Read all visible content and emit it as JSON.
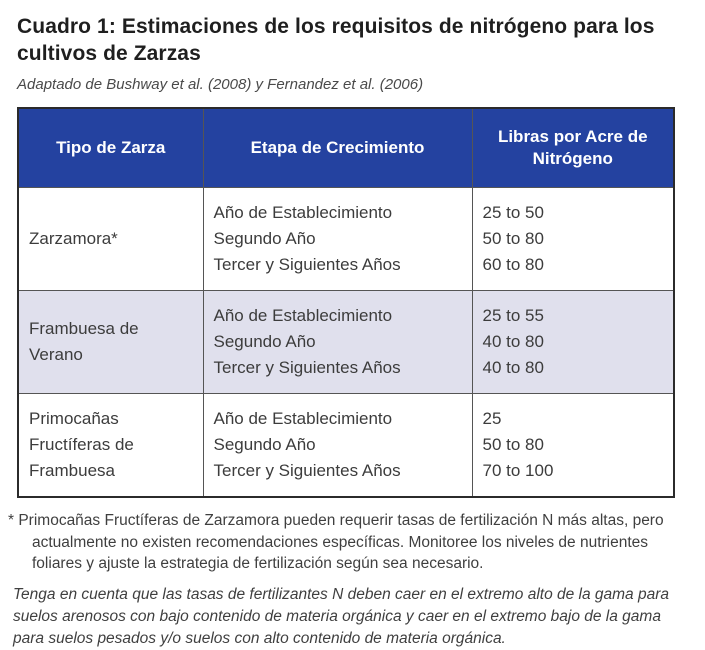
{
  "page": {
    "title": "Cuadro 1: Estimaciones de los requisitos de nitrógeno para los cultivos de Zarzas",
    "source": "Adaptado de Bushway et al. (2008) y Fernandez et al. (2006)"
  },
  "table": {
    "columns": [
      "Tipo de Zarza",
      "Etapa de Crecimiento",
      "Libras por Acre de Nitrógeno"
    ],
    "rows": [
      {
        "type": "Zarzamora*",
        "stages": [
          "Año de Establecimiento",
          "Segundo Año",
          "Tercer y Siguientes Años"
        ],
        "rates": [
          "25 to 50",
          "50 to 80",
          "60 to 80"
        ]
      },
      {
        "type": "Frambuesa de Verano",
        "stages": [
          "Año de Establecimiento",
          "Segundo Año",
          "Tercer y Siguientes Años"
        ],
        "rates": [
          "25 to 55",
          "40 to 80",
          "40 to 80"
        ]
      },
      {
        "type": "Primocañas Fructíferas de Frambuesa",
        "stages": [
          "Año de Establecimiento",
          "Segundo Año",
          "Tercer y Siguientes Años"
        ],
        "rates": [
          "25",
          "50 to 80",
          "70 to 100"
        ]
      }
    ]
  },
  "notes": {
    "footnote": "* Primocañas Fructíferas de Zarzamora pueden requerir tasas de fertilización N más altas, pero actualmente no existen recomendaciones específicas. Monitoree los niveles de nutrientes foliares y ajuste la estrategia de fertilización según sea necesario.",
    "soil_note": "Tenga en cuenta que las tasas de fertilizantes N deben caer en el extremo alto de la gama para suelos arenosos con bajo contenido de materia orgánica y caer en el extremo bajo de la gama para suelos pesados y/o suelos con alto contenido de materia orgánica."
  },
  "colors": {
    "header_bg": "#2442A0",
    "header_text": "#FFFFFF",
    "alt_row_bg": "#E0E0ED",
    "outer_border": "#2B2B2B",
    "inner_border": "#555555",
    "body_text": "#3C3C3C"
  }
}
